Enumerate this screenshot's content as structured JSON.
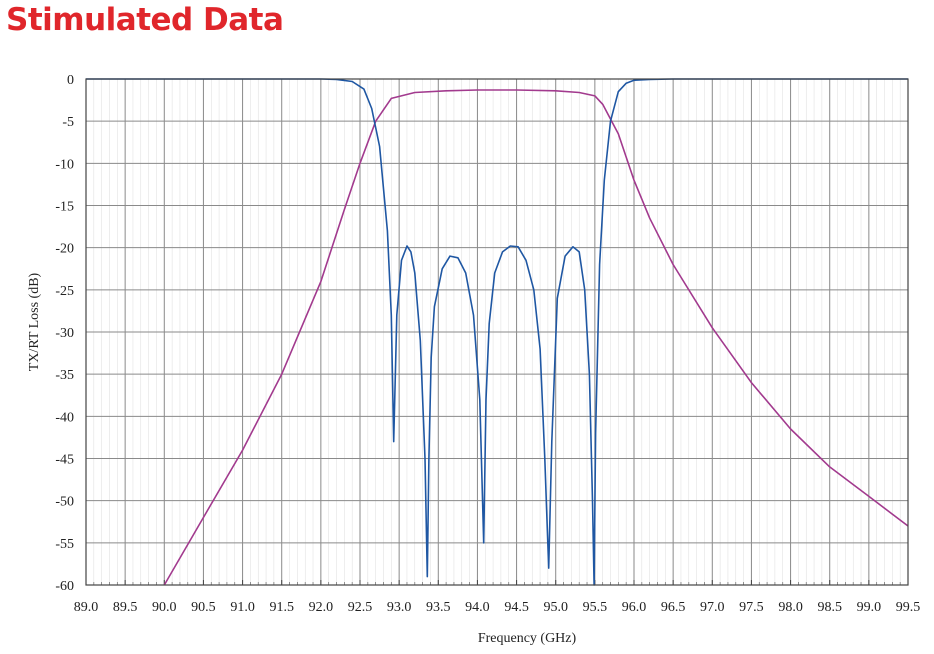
{
  "page": {
    "title": "Stimulated Data",
    "title_color": "#e0262b"
  },
  "chart_data": {
    "type": "line",
    "title": "",
    "xlabel": "Frequency (GHz)",
    "ylabel": "TX/RT  Loss (dB)",
    "xlim": [
      89.0,
      99.5
    ],
    "ylim": [
      -60,
      0
    ],
    "grid": true,
    "xticks": [
      "89.0",
      "89.5",
      "90.0",
      "90.5",
      "91.0",
      "91.5",
      "92.0",
      "92.5",
      "93.0",
      "93.5",
      "94.0",
      "94.5",
      "95.0",
      "95.5",
      "96.0",
      "96.5",
      "97.0",
      "97.5",
      "98.0",
      "98.5",
      "99.0",
      "99.5"
    ],
    "yticks": [
      "0",
      "-5",
      "-10",
      "-15",
      "-20",
      "-25",
      "-30",
      "-35",
      "-40",
      "-45",
      "-50",
      "-55",
      "-60"
    ],
    "series": [
      {
        "color": "#a23a8e",
        "x": [
          90.0,
          90.5,
          91.0,
          91.5,
          92.0,
          92.3,
          92.5,
          92.7,
          92.9,
          93.2,
          93.6,
          94.0,
          94.5,
          95.0,
          95.3,
          95.5,
          95.6,
          95.8,
          96.0,
          96.2,
          96.5,
          97.0,
          97.5,
          98.0,
          98.5,
          99.0,
          99.5
        ],
        "values": [
          -60,
          -52,
          -44,
          -35,
          -24,
          -15.5,
          -10,
          -5,
          -2.3,
          -1.6,
          -1.4,
          -1.3,
          -1.3,
          -1.4,
          -1.6,
          -2.0,
          -3.0,
          -6.5,
          -12,
          -16.5,
          -22,
          -29.5,
          -36,
          -41.5,
          -46,
          -49.5,
          -53
        ]
      },
      {
        "color": "#1f57a3",
        "x": [
          89.0,
          91.0,
          92.0,
          92.2,
          92.4,
          92.55,
          92.65,
          92.75,
          92.85,
          92.9,
          92.93,
          92.97,
          93.03,
          93.1,
          93.15,
          93.2,
          93.27,
          93.33,
          93.36,
          93.38,
          93.41,
          93.45,
          93.55,
          93.65,
          93.75,
          93.85,
          93.95,
          94.03,
          94.08,
          94.11,
          94.15,
          94.22,
          94.32,
          94.42,
          94.52,
          94.62,
          94.72,
          94.8,
          94.86,
          94.91,
          94.95,
          95.02,
          95.12,
          95.22,
          95.3,
          95.37,
          95.43,
          95.47,
          95.49,
          95.51,
          95.56,
          95.62,
          95.7,
          95.8,
          95.9,
          96.0,
          96.2,
          96.5,
          97.0,
          98.0,
          99.5
        ],
        "values": [
          0,
          0,
          0,
          -0.05,
          -0.3,
          -1.2,
          -3.5,
          -8,
          -18,
          -28,
          -43,
          -28,
          -21.5,
          -19.8,
          -20.5,
          -23,
          -31,
          -45,
          -59,
          -45,
          -33,
          -27,
          -22.5,
          -21,
          -21.2,
          -23,
          -28,
          -38,
          -55,
          -38,
          -29,
          -23,
          -20.5,
          -19.8,
          -19.9,
          -21.5,
          -25,
          -32,
          -45,
          -58,
          -43,
          -26,
          -21,
          -19.9,
          -20.5,
          -25,
          -35,
          -50,
          -60,
          -42,
          -22,
          -12,
          -5,
          -1.5,
          -0.5,
          -0.15,
          -0.05,
          0,
          0,
          0,
          0
        ]
      }
    ]
  }
}
